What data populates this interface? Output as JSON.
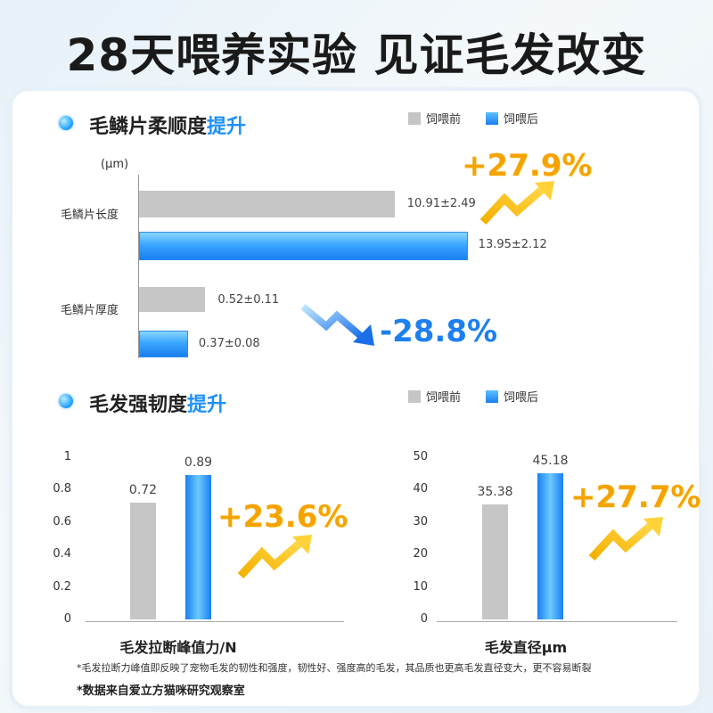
{
  "headline": "28天喂养实验  见证毛发改变",
  "legend": {
    "before": "饲喂前",
    "after": "饲喂后"
  },
  "colors": {
    "before": "#c6c6c6",
    "after": "#1a7ff0",
    "increase": "#f5a300",
    "decrease": "#1e7ff0"
  },
  "section1": {
    "title_main": "毛鳞片柔顺度",
    "title_highlight": "提升",
    "unit": "(μm)",
    "up_change": "+27.9%",
    "down_change": "-28.8%"
  },
  "section2": {
    "title_main": "毛发强韧度",
    "title_highlight": "提升",
    "left_change": "+23.6%",
    "right_change": "+27.7%"
  },
  "footnote": "*毛发拉断力峰值即反映了宠物毛发的韧性和强度，韧性好、强度高的毛发，其品质也更高毛发直径变大，更不容易断裂",
  "source": "*数据来自爱立方猫咪研究观察室",
  "chart_data": [
    {
      "type": "bar",
      "orientation": "horizontal",
      "categories": [
        "毛鳞片长度",
        "毛鳞片厚度"
      ],
      "series": [
        {
          "name": "饲喂前",
          "values": [
            10.91,
            0.52
          ],
          "labels": [
            "10.91±2.49",
            "0.52±0.11"
          ]
        },
        {
          "name": "饲喂后",
          "values": [
            13.95,
            0.37
          ],
          "labels": [
            "13.95±2.12",
            "0.37±0.08"
          ]
        }
      ],
      "ylabel": "(μm)"
    },
    {
      "type": "bar",
      "categories": [
        "饲喂前",
        "饲喂后"
      ],
      "values": [
        0.72,
        0.89
      ],
      "value_labels": [
        "0.72",
        "0.89"
      ],
      "xlabel": "毛发拉断峰值力/N",
      "ylim": [
        0,
        1
      ],
      "yticks": [
        "0",
        "0.2",
        "0.4",
        "0.6",
        "0.8",
        "1"
      ]
    },
    {
      "type": "bar",
      "categories": [
        "饲喂前",
        "饲喂后"
      ],
      "values": [
        35.38,
        45.18
      ],
      "value_labels": [
        "35.38",
        "45.18"
      ],
      "xlabel": "毛发直径μm",
      "ylim": [
        0,
        50
      ],
      "yticks": [
        "0",
        "10",
        "20",
        "30",
        "40",
        "50"
      ]
    }
  ]
}
